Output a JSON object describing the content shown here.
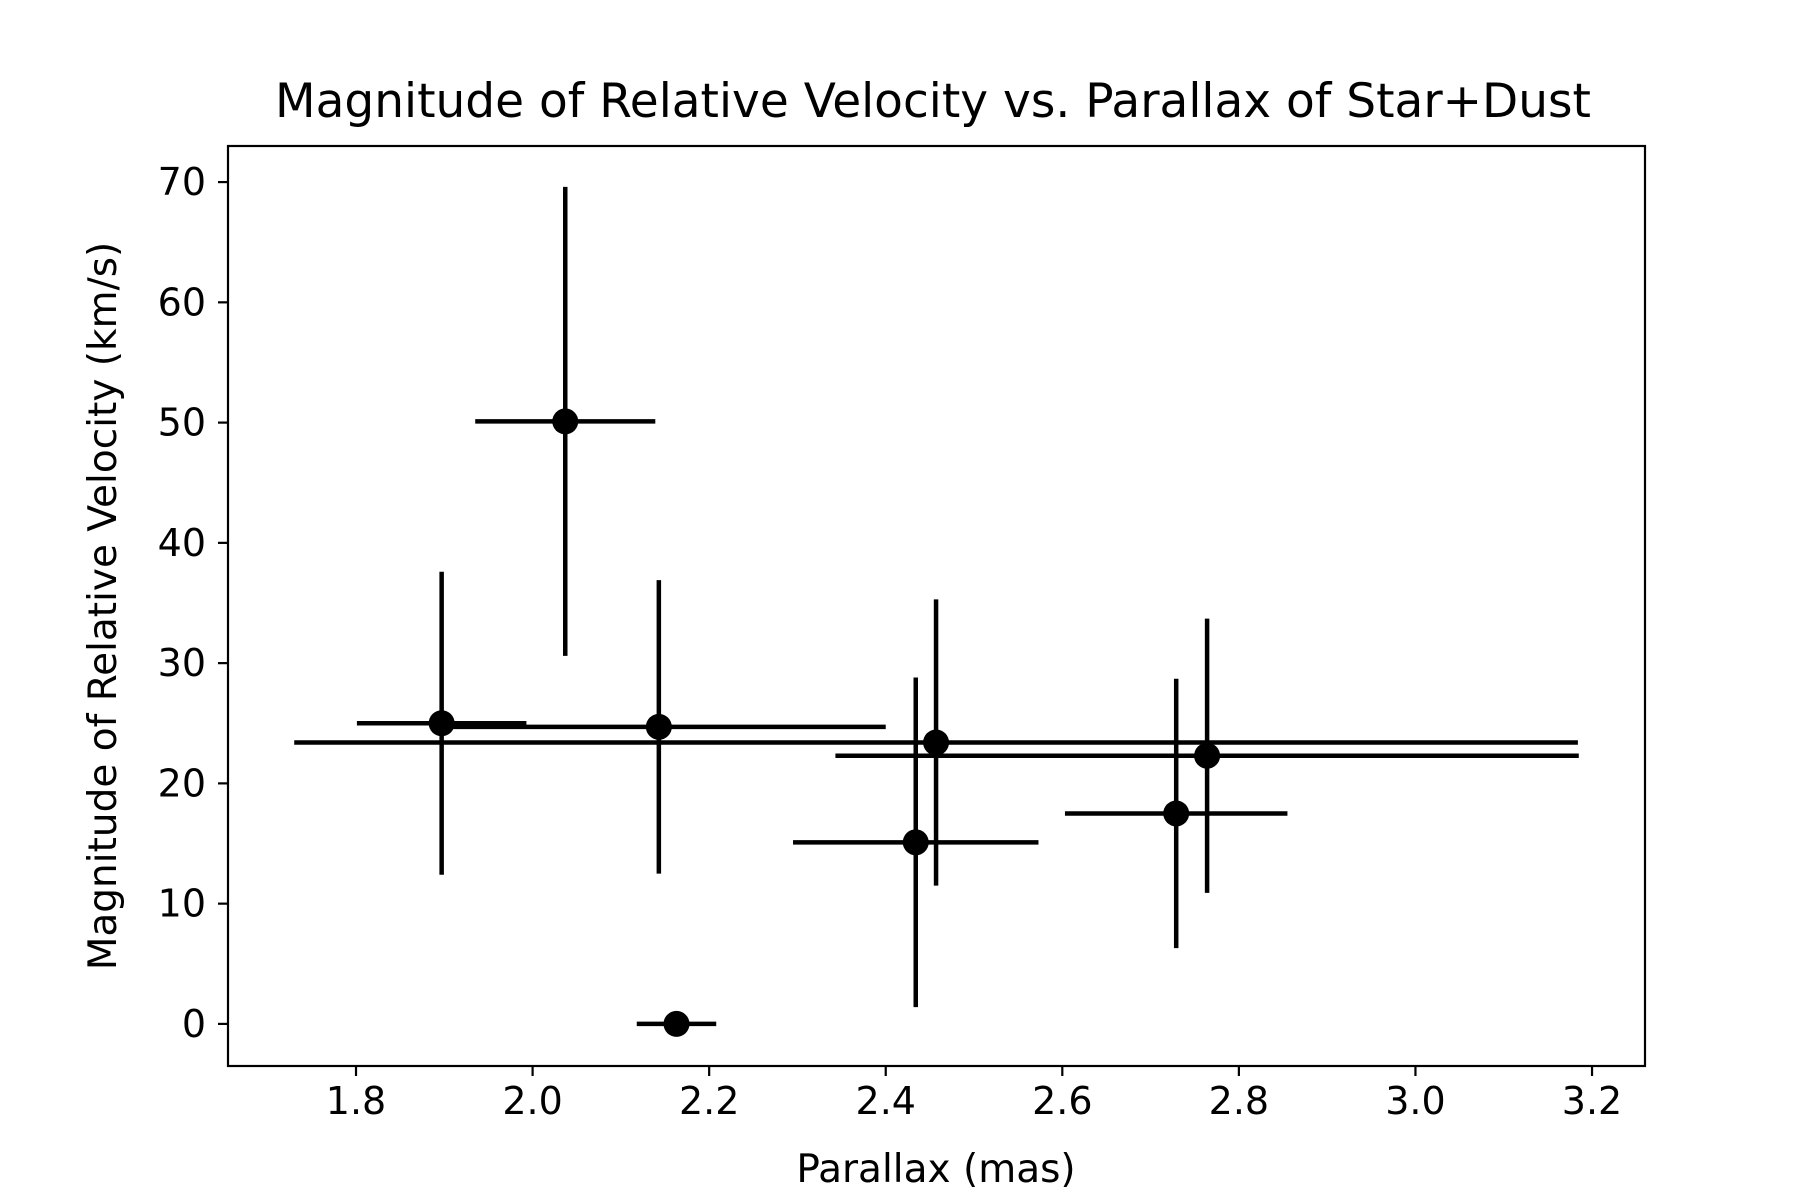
{
  "chart_data": {
    "type": "scatter",
    "title": "Magnitude of Relative Velocity vs. Parallax of Star+Dust",
    "xlabel": "Parallax (mas)",
    "ylabel": "Magnitude of Relative Velocity (km/s)",
    "xlim": [
      1.655,
      3.26
    ],
    "ylim": [
      -3.5,
      73
    ],
    "xticks": [
      1.8,
      2.0,
      2.2,
      2.4,
      2.6,
      2.8,
      3.0,
      3.2
    ],
    "xtick_labels": [
      "1.8",
      "2.0",
      "2.2",
      "2.4",
      "2.6",
      "2.8",
      "3.0",
      "3.2"
    ],
    "yticks": [
      0,
      10,
      20,
      30,
      40,
      50,
      60,
      70
    ],
    "ytick_labels": [
      "0",
      "10",
      "20",
      "30",
      "40",
      "50",
      "60",
      "70"
    ],
    "grid": false,
    "legend": "none",
    "color": "#000000",
    "points": [
      {
        "x": 1.897,
        "y": 25.0,
        "xerr": 0.096,
        "yerr": 12.6
      },
      {
        "x": 2.037,
        "y": 50.1,
        "xerr": 0.102,
        "yerr": 19.5
      },
      {
        "x": 2.143,
        "y": 24.7,
        "xerr": 0.257,
        "yerr": 12.2
      },
      {
        "x": 2.163,
        "y": 0.0,
        "xerr": 0.045,
        "yerr": 0.0
      },
      {
        "x": 2.434,
        "y": 15.1,
        "xerr": 0.139,
        "yerr": 13.7
      },
      {
        "x": 2.457,
        "y": 23.4,
        "xerr": 0.727,
        "yerr": 11.9
      },
      {
        "x": 2.729,
        "y": 17.5,
        "xerr": 0.126,
        "yerr": 11.2
      },
      {
        "x": 2.764,
        "y": 22.3,
        "xerr": 0.421,
        "yerr": 11.4
      }
    ]
  }
}
